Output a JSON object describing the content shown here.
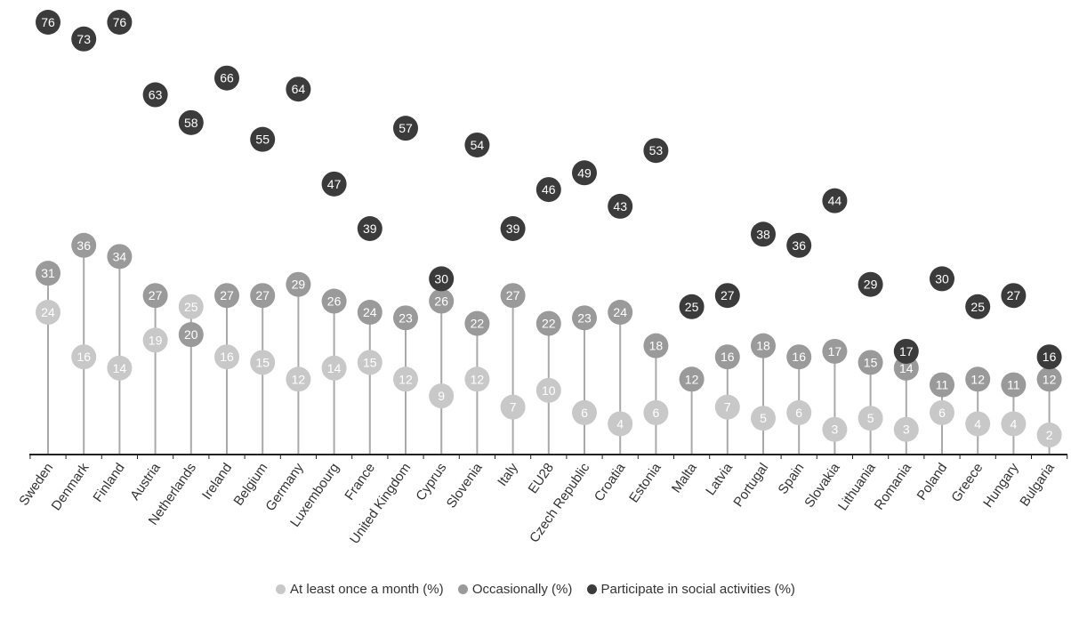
{
  "colors": {
    "monthly": "#c8c8c8",
    "occasionally": "#9a9a9a",
    "social": "#3b3b3b",
    "stem": "#a9a9a9"
  },
  "legend": {
    "items": [
      {
        "label": "At least once a month (%)"
      },
      {
        "label": "Occasionally (%)"
      },
      {
        "label": "Participate in social activities (%)"
      }
    ]
  },
  "chart_data": {
    "type": "scatter",
    "title": "",
    "xlabel": "",
    "ylabel": "",
    "ylim": [
      0,
      76
    ],
    "grid": false,
    "legend_position": "bottom",
    "categories": [
      "Sweden",
      "Denmark",
      "Finland",
      "Austria",
      "Netherlands",
      "Ireland",
      "Belgium",
      "Germany",
      "Luxembourg",
      "France",
      "United Kingdom",
      "Cyprus",
      "Slovenia",
      "Italy",
      "EU28",
      "Czech Republic",
      "Croatia",
      "Estonia",
      "Malta",
      "Latvia",
      "Portugal",
      "Spain",
      "Slovakia",
      "Lithuania",
      "Romania",
      "Poland",
      "Greece",
      "Hungary",
      "Bulgaria"
    ],
    "series": [
      {
        "name": "At least once a month (%)",
        "values": [
          24,
          16,
          14,
          19,
          25,
          16,
          15,
          12,
          14,
          15,
          12,
          9,
          12,
          7,
          10,
          6,
          4,
          6,
          12,
          7,
          5,
          6,
          3,
          5,
          3,
          6,
          4,
          4,
          2
        ]
      },
      {
        "name": "Occasionally (%)",
        "values": [
          31,
          36,
          34,
          27,
          20,
          27,
          27,
          29,
          26,
          24,
          23,
          26,
          22,
          27,
          22,
          23,
          24,
          18,
          12,
          16,
          18,
          16,
          17,
          15,
          14,
          11,
          12,
          11,
          12
        ]
      },
      {
        "name": "Participate in social activities (%)",
        "values": [
          76,
          73,
          76,
          63,
          58,
          66,
          55,
          64,
          47,
          39,
          57,
          30,
          54,
          39,
          46,
          49,
          43,
          53,
          25,
          27,
          38,
          36,
          44,
          29,
          17,
          30,
          25,
          27,
          16
        ]
      }
    ]
  }
}
